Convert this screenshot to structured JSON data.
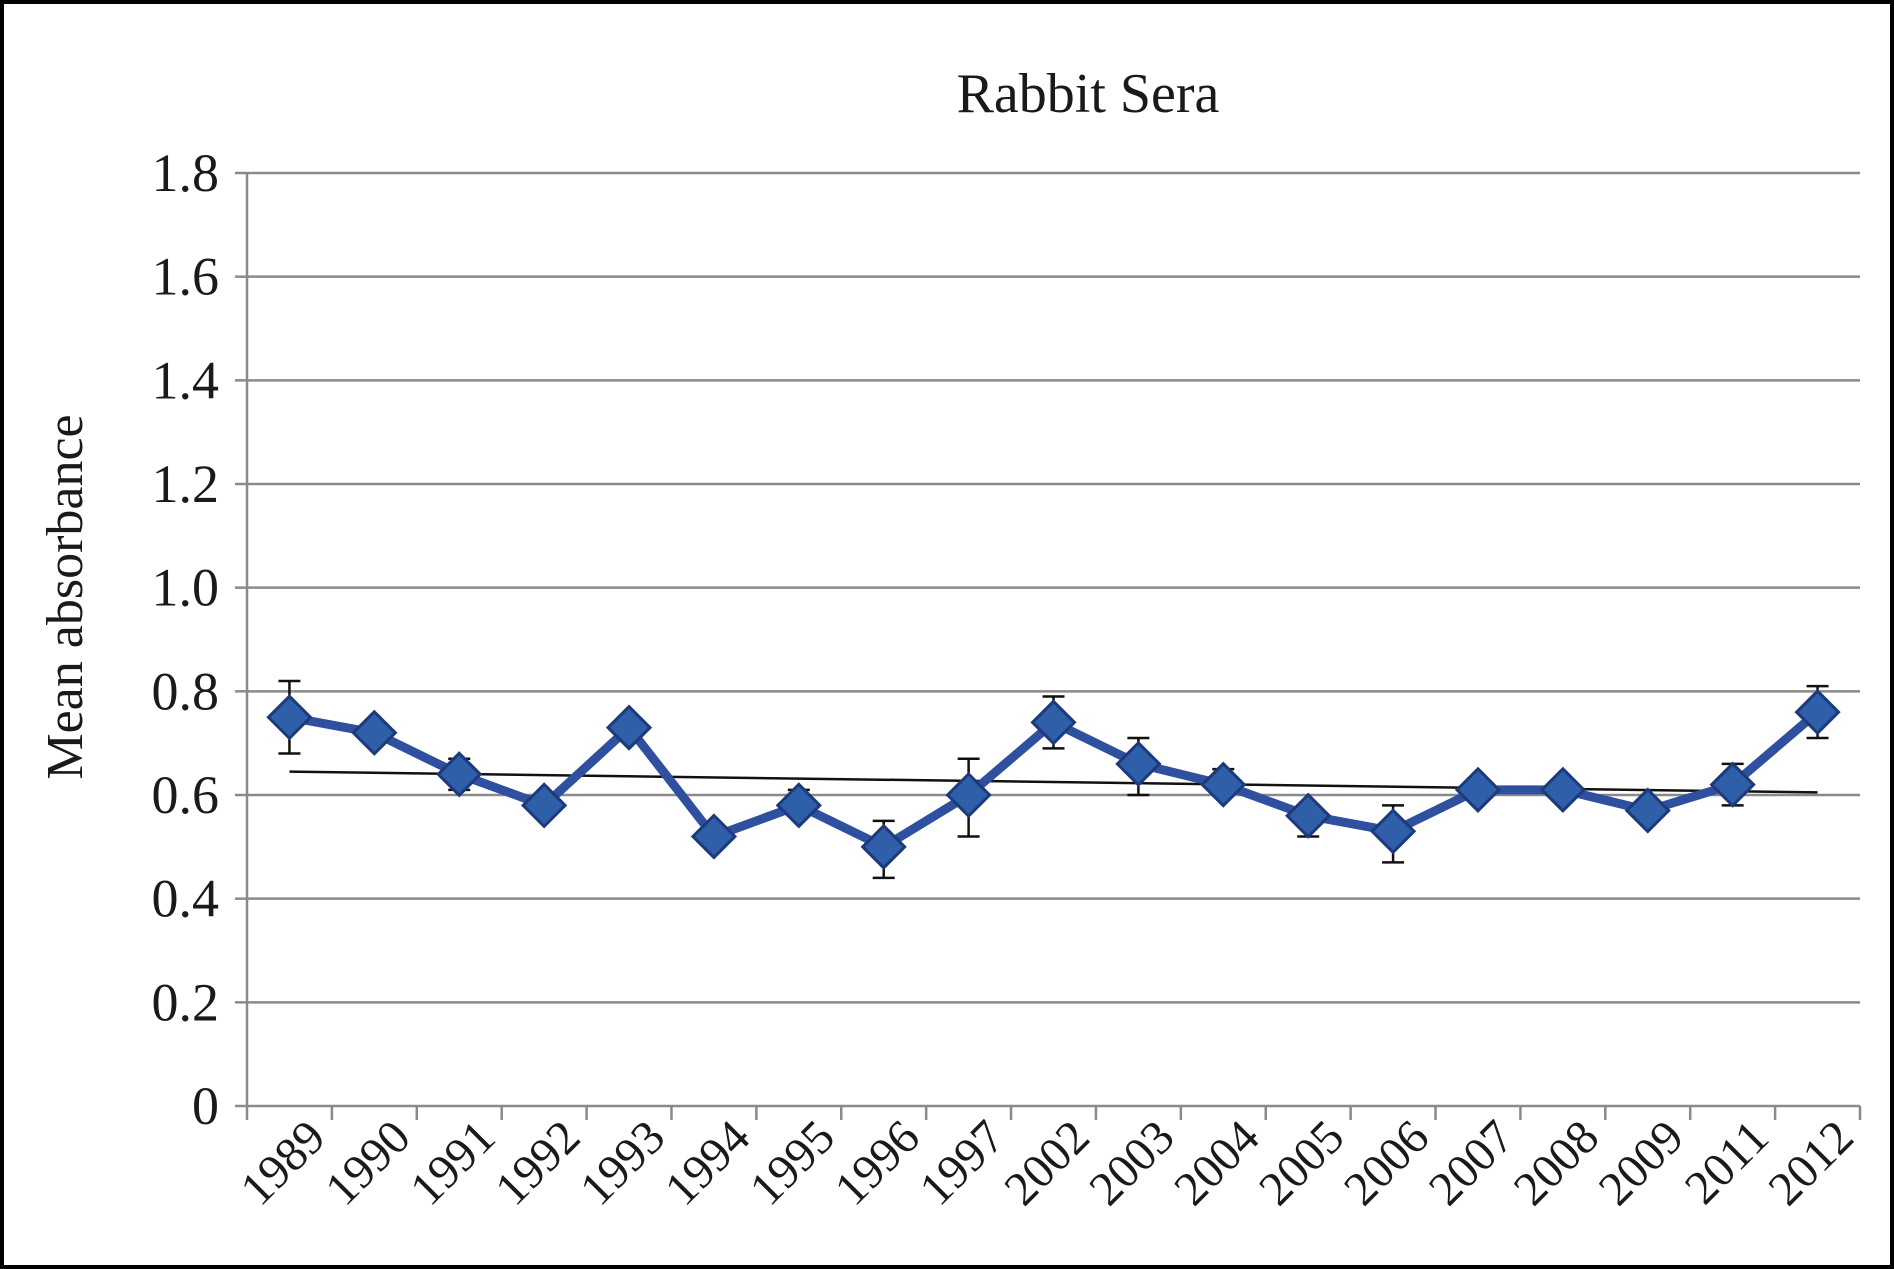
{
  "chart_data": {
    "type": "line",
    "title": "Rabbit Sera",
    "xlabel": "",
    "ylabel": "Mean absorbance",
    "ylim": [
      0,
      1.8
    ],
    "ytick_labels": [
      "0",
      "0.2",
      "0.4",
      "0.6",
      "0.8",
      "1.0",
      "1.2",
      "1.4",
      "1.6",
      "1.8"
    ],
    "yticks": [
      0,
      0.2,
      0.4,
      0.6,
      0.8,
      1.0,
      1.2,
      1.4,
      1.6,
      1.8
    ],
    "grid": true,
    "categories": [
      "1989",
      "1990",
      "1991",
      "1992",
      "1993",
      "1994",
      "1995",
      "1996",
      "1997",
      "2002",
      "2003",
      "2004",
      "2005",
      "2006",
      "2007",
      "2008",
      "2009",
      "2011",
      "2012"
    ],
    "series": [
      {
        "values": [
          0.75,
          0.72,
          0.64,
          0.58,
          0.73,
          0.52,
          0.58,
          0.5,
          0.6,
          0.74,
          0.66,
          0.62,
          0.56,
          0.53,
          0.61,
          0.61,
          0.57,
          0.62,
          0.76
        ],
        "error_upper": [
          0.82,
          0.74,
          0.67,
          0.58,
          0.75,
          0.52,
          0.61,
          0.55,
          0.67,
          0.79,
          0.71,
          0.65,
          0.58,
          0.58,
          0.62,
          0.63,
          0.59,
          0.66,
          0.81
        ],
        "error_lower": [
          0.68,
          0.7,
          0.61,
          0.58,
          0.71,
          0.51,
          0.56,
          0.44,
          0.52,
          0.69,
          0.6,
          0.6,
          0.52,
          0.47,
          0.6,
          0.59,
          0.55,
          0.58,
          0.71
        ],
        "color": "#2f4f9f",
        "marker": "diamond",
        "marker_color": "#2e5fa8"
      }
    ],
    "trendline": {
      "start": 0.645,
      "end": 0.605,
      "color": "#111111"
    },
    "colors": {
      "grid": "#8a8a8a",
      "axis": "#8a8a8a",
      "text": "#1a1a1a"
    }
  }
}
